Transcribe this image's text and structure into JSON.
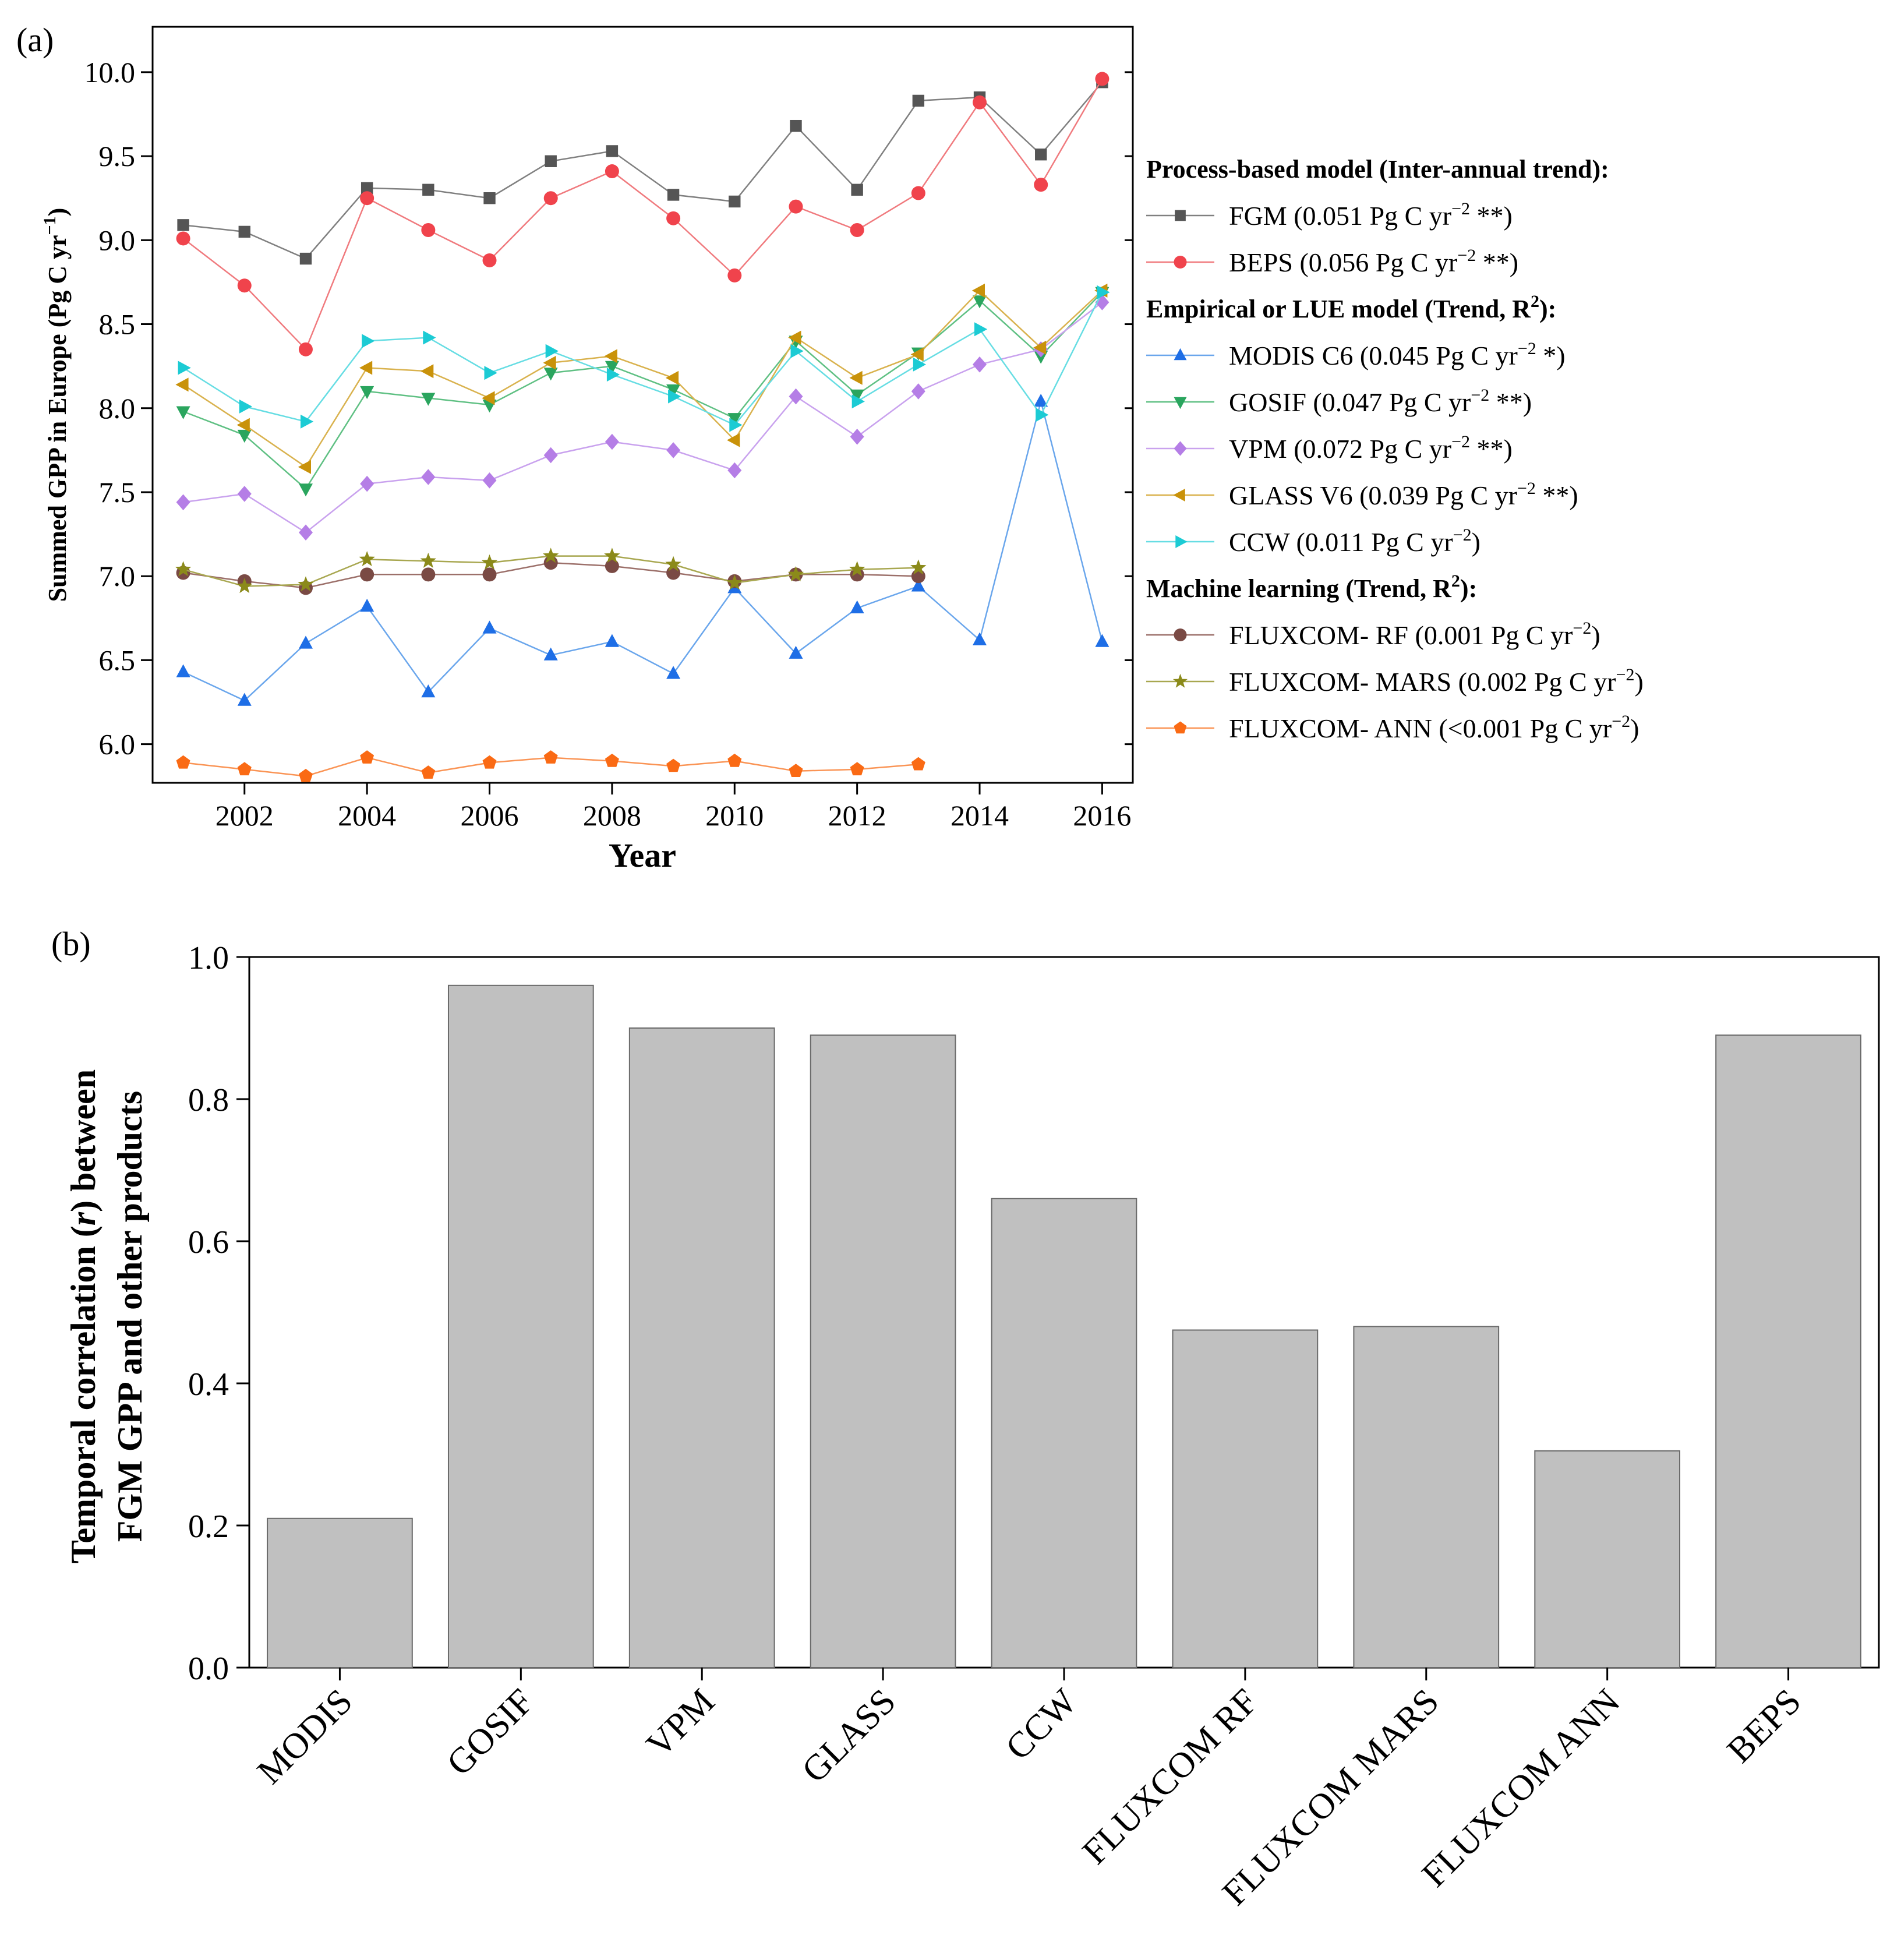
{
  "labels": {
    "panel_a": "(a)",
    "panel_b": "(b)"
  },
  "chart_data": [
    {
      "type": "line",
      "panel": "(a)",
      "xlabel": "Year",
      "ylabel_main": "Summed GPP in Europe (Pg C yr",
      "ylabel_sup": "−1",
      "ylabel_end": ")",
      "xlim": [
        2000.5,
        2016.5
      ],
      "ylim": [
        5.77,
        10.27
      ],
      "xticks": [
        2002,
        2004,
        2006,
        2008,
        2010,
        2012,
        2014,
        2016
      ],
      "yticks": [
        6.0,
        6.5,
        7.0,
        7.5,
        8.0,
        8.5,
        9.0,
        9.5,
        10.0
      ],
      "ytick_labels": [
        "6.0",
        "6.5",
        "7.0",
        "7.5",
        "8.0",
        "8.5",
        "9.0",
        "9.5",
        "10.0"
      ],
      "legend_position": "right",
      "legend_groups": [
        {
          "title": "Process-based model (Inter-annual trend):",
          "title_sup": "",
          "title_end": "",
          "series": [
            0,
            1
          ]
        },
        {
          "title": "Empirical or LUE model (Trend, R",
          "title_sup": "2",
          "title_end": "):",
          "series": [
            2,
            3,
            4,
            5,
            6
          ]
        },
        {
          "title": "Machine learning (Trend, R",
          "title_sup": "2",
          "title_end": "):",
          "series": [
            7,
            8,
            9
          ]
        }
      ],
      "series": [
        {
          "name": "FGM",
          "label_pre": "FGM (0.051 Pg C yr",
          "label_sup": "−2",
          "label_post": " **)",
          "color": "#555555",
          "line": "#808080",
          "marker": "square",
          "x": [
            2001,
            2002,
            2003,
            2004,
            2005,
            2006,
            2007,
            2008,
            2009,
            2010,
            2011,
            2012,
            2013,
            2014,
            2015,
            2016
          ],
          "values": [
            9.09,
            9.05,
            8.89,
            9.31,
            9.3,
            9.25,
            9.47,
            9.53,
            9.27,
            9.23,
            9.68,
            9.3,
            9.83,
            9.85,
            9.51,
            9.94
          ]
        },
        {
          "name": "BEPS",
          "label_pre": "BEPS (0.056 Pg C yr",
          "label_sup": "−2",
          "label_post": " **)",
          "color": "#f0434c",
          "line": "#f07a7e",
          "marker": "circle",
          "x": [
            2001,
            2002,
            2003,
            2004,
            2005,
            2006,
            2007,
            2008,
            2009,
            2010,
            2011,
            2012,
            2013,
            2014,
            2015,
            2016
          ],
          "values": [
            9.01,
            8.73,
            8.35,
            9.25,
            9.06,
            8.88,
            9.25,
            9.41,
            9.13,
            8.79,
            9.2,
            9.06,
            9.28,
            9.82,
            9.33,
            9.96
          ]
        },
        {
          "name": "MODIS C6",
          "label_pre": "MODIS C6 (0.045 Pg C yr",
          "label_sup": "−2",
          "label_post": " *)",
          "color": "#1e6ee6",
          "line": "#6aa6ec",
          "marker": "triangle-up",
          "x": [
            2001,
            2002,
            2003,
            2004,
            2005,
            2006,
            2007,
            2008,
            2009,
            2010,
            2011,
            2012,
            2013,
            2014,
            2015,
            2016
          ],
          "values": [
            6.43,
            6.26,
            6.6,
            6.82,
            6.31,
            6.69,
            6.53,
            6.61,
            6.42,
            6.93,
            6.54,
            6.81,
            6.94,
            6.62,
            8.04,
            6.61
          ]
        },
        {
          "name": "GOSIF",
          "label_pre": "GOSIF (0.047 Pg C yr",
          "label_sup": "−2",
          "label_post": " **)",
          "color": "#2aa55e",
          "line": "#5fc083",
          "marker": "triangle-down",
          "x": [
            2001,
            2002,
            2003,
            2004,
            2005,
            2006,
            2007,
            2008,
            2009,
            2010,
            2011,
            2012,
            2013,
            2014,
            2015,
            2016
          ],
          "values": [
            7.98,
            7.84,
            7.52,
            8.1,
            8.06,
            8.02,
            8.21,
            8.25,
            8.11,
            7.94,
            8.4,
            8.08,
            8.33,
            8.64,
            8.31,
            8.69
          ]
        },
        {
          "name": "VPM",
          "label_pre": "VPM (0.072 Pg C yr",
          "label_sup": "−2",
          "label_post": " **)",
          "color": "#b57ee6",
          "line": "#c9a2ee",
          "marker": "diamond",
          "x": [
            2001,
            2002,
            2003,
            2004,
            2005,
            2006,
            2007,
            2008,
            2009,
            2010,
            2011,
            2012,
            2013,
            2014,
            2015,
            2016
          ],
          "values": [
            7.44,
            7.49,
            7.26,
            7.55,
            7.59,
            7.57,
            7.72,
            7.8,
            7.75,
            7.63,
            8.07,
            7.83,
            8.1,
            8.26,
            8.35,
            8.63
          ]
        },
        {
          "name": "GLASS V6",
          "label_pre": "GLASS  V6 (0.039 Pg C yr",
          "label_sup": "−2",
          "label_post": " **)",
          "color": "#c9920a",
          "line": "#d9b24e",
          "marker": "triangle-left",
          "x": [
            2001,
            2002,
            2003,
            2004,
            2005,
            2006,
            2007,
            2008,
            2009,
            2010,
            2011,
            2012,
            2013,
            2014,
            2015,
            2016
          ],
          "values": [
            8.14,
            7.9,
            7.65,
            8.24,
            8.22,
            8.06,
            8.27,
            8.31,
            8.18,
            7.81,
            8.42,
            8.18,
            8.32,
            8.7,
            8.36,
            8.7
          ]
        },
        {
          "name": "CCW",
          "label_pre": "CCW  (0.011 Pg C yr",
          "label_sup": "−2",
          "label_post": ")",
          "color": "#1ccbd4",
          "line": "#66dde3",
          "marker": "triangle-right",
          "x": [
            2001,
            2002,
            2003,
            2004,
            2005,
            2006,
            2007,
            2008,
            2009,
            2010,
            2011,
            2012,
            2013,
            2014,
            2015,
            2016
          ],
          "values": [
            8.24,
            8.01,
            7.92,
            8.4,
            8.42,
            8.21,
            8.34,
            8.2,
            8.07,
            7.9,
            8.34,
            8.04,
            8.26,
            8.47,
            7.96,
            8.69
          ]
        },
        {
          "name": "FLUXCOM- RF",
          "label_pre": "FLUXCOM- RF (0.001 Pg C yr",
          "label_sup": "−2",
          "label_post": ")",
          "color": "#7a4a44",
          "line": "#9c706a",
          "marker": "circle",
          "x": [
            2001,
            2002,
            2003,
            2004,
            2005,
            2006,
            2007,
            2008,
            2009,
            2010,
            2011,
            2012,
            2013
          ],
          "values": [
            7.02,
            6.97,
            6.93,
            7.01,
            7.01,
            7.01,
            7.08,
            7.06,
            7.02,
            6.97,
            7.01,
            7.01,
            7.0
          ]
        },
        {
          "name": "FLUXCOM- MARS",
          "label_pre": "FLUXCOM- MARS (0.002 Pg C yr",
          "label_sup": "−2",
          "label_post": ")",
          "color": "#8b8a1a",
          "line": "#a8a750",
          "marker": "star",
          "x": [
            2001,
            2002,
            2003,
            2004,
            2005,
            2006,
            2007,
            2008,
            2009,
            2010,
            2011,
            2012,
            2013
          ],
          "values": [
            7.04,
            6.94,
            6.95,
            7.1,
            7.09,
            7.08,
            7.12,
            7.12,
            7.07,
            6.96,
            7.01,
            7.04,
            7.05
          ]
        },
        {
          "name": "FLUXCOM- ANN",
          "label_pre": "FLUXCOM- ANN (<0.001 Pg C yr",
          "label_sup": "−2",
          "label_post": ")",
          "color": "#fa6a14",
          "line": "#fa9455",
          "marker": "pentagon",
          "x": [
            2001,
            2002,
            2003,
            2004,
            2005,
            2006,
            2007,
            2008,
            2009,
            2010,
            2011,
            2012,
            2013
          ],
          "values": [
            5.89,
            5.85,
            5.81,
            5.92,
            5.83,
            5.89,
            5.92,
            5.9,
            5.87,
            5.9,
            5.84,
            5.85,
            5.88
          ]
        }
      ]
    },
    {
      "type": "bar",
      "panel": "(b)",
      "ylabel_line1_pre": "Temporal correlation (",
      "ylabel_line1_ital": "r",
      "ylabel_line1_post": ") between",
      "ylabel_line2": "FGM GPP and other products",
      "ylim": [
        0,
        1.0
      ],
      "yticks": [
        0.0,
        0.2,
        0.4,
        0.6,
        0.8,
        1.0
      ],
      "ytick_labels": [
        "0.0",
        "0.2",
        "0.4",
        "0.6",
        "0.8",
        "1.0"
      ],
      "bar_color": "#c0c0c0",
      "categories": [
        "MODIS",
        "GOSIF",
        "VPM",
        "GLASS",
        "CCW",
        "FLUXCOM RF",
        "FLUXCOM MARS",
        "FLUXCOM ANN",
        "BEPS"
      ],
      "values": [
        0.21,
        0.96,
        0.9,
        0.89,
        0.66,
        0.475,
        0.48,
        0.305,
        0.89
      ]
    }
  ]
}
